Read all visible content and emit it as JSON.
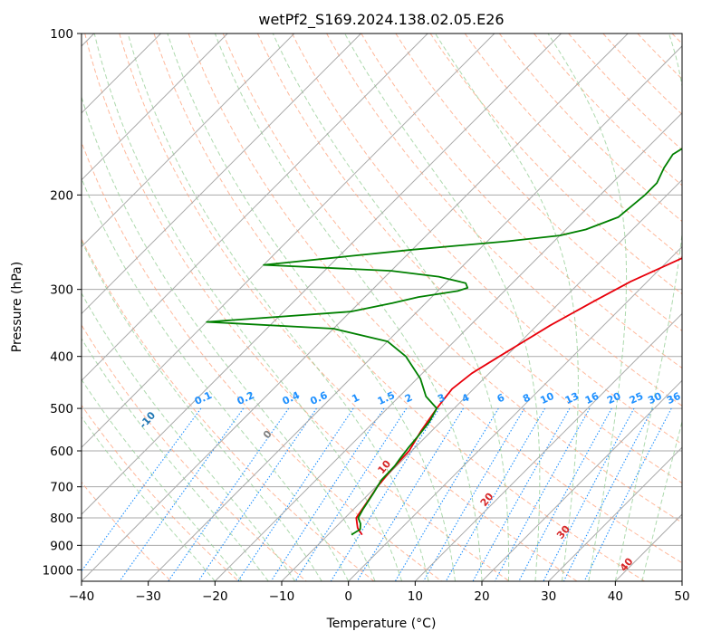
{
  "chart_data": {
    "type": "line",
    "chart_kind": "skew-t log-p diagram",
    "title": "wetPf2_S169.2024.138.02.05.E26",
    "xlabel": "Temperature (°C)",
    "ylabel": "Pressure (hPa)",
    "xlim": [
      -40,
      50
    ],
    "ylim": [
      1050,
      100
    ],
    "y_scale": "log",
    "x_ticks": [
      -40,
      -30,
      -20,
      -10,
      0,
      10,
      20,
      30,
      40,
      50
    ],
    "y_ticks": [
      100,
      200,
      300,
      400,
      500,
      600,
      700,
      800,
      900,
      1000
    ],
    "grid": true,
    "colors": {
      "temperature": "#e8000b",
      "dewpoint": "#008000",
      "isotherm": "#a9a9a9",
      "dry_adiabat": "#ffa07a",
      "moist_adiabat": "#98d098",
      "mixing_ratio": "#1e90ff",
      "dry_label": "#1f77b4",
      "moist_label": "#d62728"
    },
    "series": [
      {
        "role": "temperature",
        "values": [
          [
            -4.9,
            860
          ],
          [
            -5.6,
            850
          ],
          [
            -6.6,
            835
          ],
          [
            -8.3,
            800
          ],
          [
            -9.0,
            750
          ],
          [
            -9.8,
            700
          ],
          [
            -10.2,
            650
          ],
          [
            -10.4,
            600
          ],
          [
            -11.6,
            550
          ],
          [
            -12.6,
            500
          ],
          [
            -13.2,
            460
          ],
          [
            -12.6,
            430
          ],
          [
            -11.0,
            400
          ],
          [
            -8.0,
            350
          ],
          [
            -5.0,
            315
          ],
          [
            -2.5,
            290
          ],
          [
            0.5,
            270
          ],
          [
            4.5,
            245
          ],
          [
            8.5,
            225
          ],
          [
            12.0,
            205
          ],
          [
            15.5,
            185
          ],
          [
            20.0,
            163
          ],
          [
            24.5,
            145
          ],
          [
            29.5,
            128
          ],
          [
            31.0,
            118
          ],
          [
            33.0,
            108
          ],
          [
            35.0,
            100
          ]
        ]
      },
      {
        "role": "dewpoint",
        "values": [
          [
            -6.5,
            860
          ],
          [
            -6.0,
            840
          ],
          [
            -6.8,
            820
          ],
          [
            -8.0,
            800
          ],
          [
            -8.6,
            770
          ],
          [
            -9.4,
            720
          ],
          [
            -10.2,
            680
          ],
          [
            -10.3,
            640
          ],
          [
            -10.6,
            620
          ],
          [
            -11.0,
            590
          ],
          [
            -11.3,
            560
          ],
          [
            -11.7,
            530
          ],
          [
            -12.6,
            500
          ],
          [
            -16.0,
            475
          ],
          [
            -19.5,
            440
          ],
          [
            -25.0,
            400
          ],
          [
            -30.0,
            375
          ],
          [
            -40.0,
            355
          ],
          [
            -60.0,
            345
          ],
          [
            -40.0,
            330
          ],
          [
            -35.0,
            318
          ],
          [
            -32.0,
            310
          ],
          [
            -27.0,
            302
          ],
          [
            -26.0,
            298
          ],
          [
            -27.0,
            292
          ],
          [
            -32.0,
            284
          ],
          [
            -40.0,
            277
          ],
          [
            -60.0,
            270
          ],
          [
            -40.0,
            253
          ],
          [
            -27.0,
            244
          ],
          [
            -20.0,
            238
          ],
          [
            -17.0,
            232
          ],
          [
            -14.0,
            220
          ],
          [
            -13.3,
            200
          ],
          [
            -13.3,
            190
          ],
          [
            -14.5,
            178
          ],
          [
            -15.2,
            168
          ],
          [
            -13.5,
            155
          ],
          [
            -11.2,
            140
          ],
          [
            -8.5,
            128
          ],
          [
            -6.5,
            118
          ],
          [
            -3.5,
            108
          ],
          [
            -0.5,
            100
          ]
        ]
      }
    ],
    "dry_adiabat_labels": [
      "-100",
      "-90",
      "-80",
      "-70",
      "-60",
      "-50",
      "-40",
      "-30",
      "-20",
      "-10"
    ],
    "mixing_ratio_labels": [
      "0.1",
      "0.2",
      "0.4",
      "0.6",
      "1",
      "1.5",
      "2",
      "3",
      "4",
      "6",
      "8",
      "10",
      "13",
      "16",
      "20",
      "25",
      "30",
      "36"
    ],
    "moist_adiabat_labels": [
      "0",
      "10",
      "20",
      "30",
      "40"
    ]
  }
}
